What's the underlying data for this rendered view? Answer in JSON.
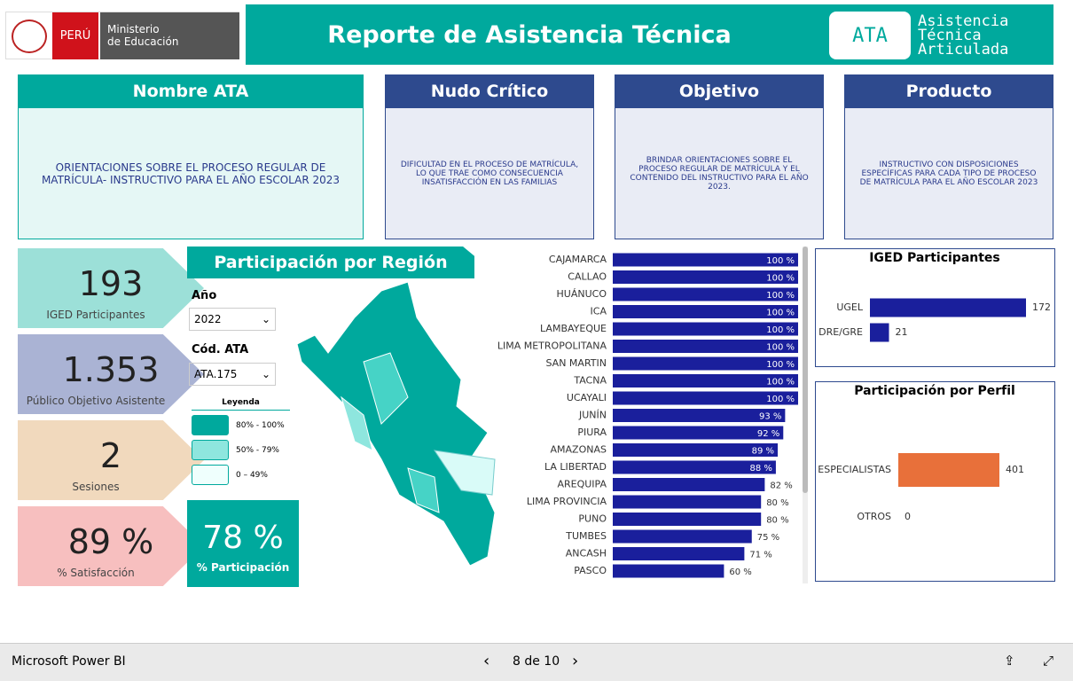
{
  "header": {
    "logo_country": "PERÚ",
    "logo_ministry": [
      "Ministerio",
      "de Educación"
    ],
    "title": "Reporte de Asistencia Técnica",
    "badge": "ATA",
    "badge_text": [
      "Asistencia",
      "Técnica",
      "Articulada"
    ]
  },
  "cards": [
    {
      "title": "Nombre ATA",
      "body": "ORIENTACIONES SOBRE EL PROCESO REGULAR DE MATRÍCULA- INSTRUCTIVO PARA EL AÑO ESCOLAR 2023"
    },
    {
      "title": "Nudo Crítico",
      "body": "DIFICULTAD EN EL PROCESO DE MATRÍCULA, LO QUE TRAE COMO CONSECUENCIA INSATISFACCIÓN EN LAS FAMILIAS"
    },
    {
      "title": "Objetivo",
      "body": "BRINDAR ORIENTACIONES SOBRE EL PROCESO REGULAR DE MATRÍCULA Y EL CONTENIDO DEL INSTRUCTIVO PARA EL AÑO 2023."
    },
    {
      "title": "Producto",
      "body": "INSTRUCTIVO CON DISPOSICIONES ESPECÍFICAS PARA CADA TIPO DE PROCESO DE MATRÍCULA PARA EL AÑO ESCOLAR 2023"
    }
  ],
  "kpis": [
    {
      "value": "193",
      "label": "IGED Participantes"
    },
    {
      "value": "1.353",
      "label": "Público Objetivo Asistente"
    },
    {
      "value": "2",
      "label": "Sesiones"
    },
    {
      "value": "89 %",
      "label": "% Satisfacción"
    }
  ],
  "region_panel": {
    "title": "Participación por Región",
    "filters": [
      {
        "label": "Año",
        "value": "2022"
      },
      {
        "label": "Cód. ATA",
        "value": "ATA.175"
      }
    ],
    "legend": {
      "title": "Leyenda",
      "items": [
        {
          "label": "80% - 100%",
          "color": "#00a99d"
        },
        {
          "label": "50% - 79%",
          "color": "#8ee6de"
        },
        {
          "label": "0 – 49%",
          "color": "#effffd"
        }
      ]
    },
    "participation": {
      "value": "78 %",
      "label": "% Participación"
    }
  },
  "region_chart": {
    "type": "bar",
    "color": "#1a1f9c",
    "categories": [
      "CAJAMARCA",
      "CALLAO",
      "HUÁNUCO",
      "ICA",
      "LAMBAYEQUE",
      "LIMA METROPOLITANA",
      "SAN MARTIN",
      "TACNA",
      "UCAYALI",
      "JUNÍN",
      "PIURA",
      "AMAZONAS",
      "LA LIBERTAD",
      "AREQUIPA",
      "LIMA PROVINCIA",
      "PUNO",
      "TUMBES",
      "ANCASH",
      "PASCO"
    ],
    "values": [
      100,
      100,
      100,
      100,
      100,
      100,
      100,
      100,
      100,
      93,
      92,
      89,
      88,
      82,
      80,
      80,
      75,
      71,
      60
    ],
    "value_labels": [
      "100 %",
      "100 %",
      "100 %",
      "100 %",
      "100 %",
      "100 %",
      "100 %",
      "100 %",
      "100 %",
      "93 %",
      "92 %",
      "89 %",
      "88 %",
      "82 %",
      "80 %",
      "80 %",
      "75 %",
      "71 %",
      "60 %"
    ]
  },
  "iged_chart": {
    "type": "bar",
    "title": "IGED Participantes",
    "color": "#1a1f9c",
    "categories": [
      "UGEL",
      "DRE/GRE"
    ],
    "values": [
      172,
      21
    ]
  },
  "perfil_chart": {
    "type": "bar",
    "title": "Participación por Perfil",
    "color": "#e8703a",
    "categories": [
      "ESPECIALISTAS",
      "OTROS"
    ],
    "values": [
      401,
      0
    ]
  },
  "footer": {
    "app": "Microsoft Power BI",
    "page": "8 de 10"
  }
}
